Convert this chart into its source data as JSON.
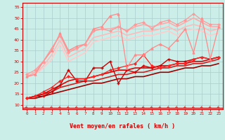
{
  "background_color": "#cceee8",
  "grid_color": "#aacccc",
  "xlabel": "Vent moyen/en rafales ( km/h )",
  "xlim": [
    -0.5,
    23.5
  ],
  "ylim": [
    8,
    57
  ],
  "yticks": [
    10,
    15,
    20,
    25,
    30,
    35,
    40,
    45,
    50,
    55
  ],
  "xticks": [
    0,
    1,
    2,
    3,
    4,
    5,
    6,
    7,
    8,
    9,
    10,
    11,
    12,
    13,
    14,
    15,
    16,
    17,
    18,
    19,
    20,
    21,
    22,
    23
  ],
  "lines": [
    {
      "x": [
        0,
        1,
        2,
        3,
        4,
        5,
        6,
        7,
        8,
        9,
        10,
        11,
        12,
        13,
        14,
        15,
        16,
        17,
        18,
        19,
        20,
        21,
        22,
        23
      ],
      "y": [
        13,
        14,
        14,
        16,
        19,
        26,
        21,
        21,
        27,
        27,
        30,
        20,
        26,
        25,
        28,
        27,
        28,
        31,
        30,
        30,
        31,
        32,
        31,
        32
      ],
      "color": "#cc0000",
      "linewidth": 1.0,
      "marker": "+",
      "markersize": 3.5,
      "markeredgewidth": 1.0,
      "zorder": 6
    },
    {
      "x": [
        0,
        1,
        2,
        3,
        4,
        5,
        6,
        7,
        8,
        9,
        10,
        11,
        12,
        13,
        14,
        15,
        16,
        17,
        18,
        19,
        20,
        21,
        22,
        23
      ],
      "y": [
        13,
        14,
        15,
        17,
        19,
        21,
        22,
        22,
        23,
        24,
        25,
        26,
        26,
        27,
        27,
        27,
        28,
        28,
        29,
        29,
        30,
        30,
        31,
        32
      ],
      "color": "#dd0000",
      "linewidth": 1.2,
      "marker": null,
      "markersize": 0,
      "markeredgewidth": 0,
      "zorder": 4
    },
    {
      "x": [
        0,
        1,
        2,
        3,
        4,
        5,
        6,
        7,
        8,
        9,
        10,
        11,
        12,
        13,
        14,
        15,
        16,
        17,
        18,
        19,
        20,
        21,
        22,
        23
      ],
      "y": [
        13,
        14,
        16,
        18,
        21,
        23,
        22,
        22,
        23,
        24,
        26,
        27,
        28,
        29,
        33,
        28,
        27,
        28,
        29,
        29,
        31,
        32,
        31,
        32
      ],
      "color": "#ff2222",
      "linewidth": 0.9,
      "marker": "D",
      "markersize": 2.0,
      "markeredgewidth": 0.5,
      "zorder": 6
    },
    {
      "x": [
        0,
        1,
        2,
        3,
        4,
        5,
        6,
        7,
        8,
        9,
        10,
        11,
        12,
        13,
        14,
        15,
        16,
        17,
        18,
        19,
        20,
        21,
        22,
        23
      ],
      "y": [
        13,
        13,
        14,
        15,
        16,
        17,
        18,
        19,
        20,
        20,
        21,
        22,
        22,
        23,
        23,
        24,
        25,
        25,
        26,
        27,
        27,
        28,
        28,
        29
      ],
      "color": "#990000",
      "linewidth": 1.2,
      "marker": null,
      "markersize": 0,
      "markeredgewidth": 0,
      "zorder": 3
    },
    {
      "x": [
        0,
        1,
        2,
        3,
        4,
        5,
        6,
        7,
        8,
        9,
        10,
        11,
        12,
        13,
        14,
        15,
        16,
        17,
        18,
        19,
        20,
        21,
        22,
        23
      ],
      "y": [
        13,
        14,
        15,
        16,
        18,
        19,
        20,
        21,
        21,
        22,
        23,
        24,
        24,
        25,
        25,
        26,
        27,
        27,
        28,
        28,
        29,
        29,
        30,
        31
      ],
      "color": "#cc2222",
      "linewidth": 1.2,
      "marker": null,
      "markersize": 0,
      "markeredgewidth": 0,
      "zorder": 3
    },
    {
      "x": [
        0,
        1,
        2,
        3,
        4,
        5,
        6,
        7,
        8,
        9,
        10,
        11,
        12,
        13,
        14,
        15,
        16,
        17,
        18,
        19,
        20,
        21,
        22,
        23
      ],
      "y": [
        23,
        24,
        30,
        35,
        43,
        35,
        37,
        38,
        45,
        46,
        51,
        52,
        27,
        33,
        33,
        36,
        38,
        36,
        40,
        45,
        34,
        50,
        31,
        46
      ],
      "color": "#ff8888",
      "linewidth": 0.9,
      "marker": "^",
      "markersize": 2.5,
      "markeredgewidth": 0.5,
      "zorder": 6
    },
    {
      "x": [
        0,
        1,
        2,
        3,
        4,
        5,
        6,
        7,
        8,
        9,
        10,
        11,
        12,
        13,
        14,
        15,
        16,
        17,
        18,
        19,
        20,
        21,
        22,
        23
      ],
      "y": [
        23,
        25,
        30,
        36,
        42,
        35,
        36,
        38,
        44,
        45,
        45,
        46,
        44,
        46,
        47,
        46,
        47,
        48,
        46,
        48,
        50,
        48,
        46,
        46
      ],
      "color": "#ffaaaa",
      "linewidth": 1.2,
      "marker": null,
      "markersize": 0,
      "markeredgewidth": 0,
      "zorder": 4
    },
    {
      "x": [
        0,
        1,
        2,
        3,
        4,
        5,
        6,
        7,
        8,
        9,
        10,
        11,
        12,
        13,
        14,
        15,
        16,
        17,
        18,
        19,
        20,
        21,
        22,
        23
      ],
      "y": [
        23,
        24,
        28,
        33,
        40,
        32,
        34,
        36,
        41,
        42,
        43,
        44,
        42,
        43,
        44,
        44,
        45,
        46,
        44,
        46,
        47,
        46,
        44,
        45
      ],
      "color": "#ffbbbb",
      "linewidth": 1.2,
      "marker": null,
      "markersize": 0,
      "markeredgewidth": 0,
      "zorder": 3
    },
    {
      "x": [
        0,
        1,
        2,
        3,
        4,
        5,
        6,
        7,
        8,
        9,
        10,
        11,
        12,
        13,
        14,
        15,
        16,
        17,
        18,
        19,
        20,
        21,
        22,
        23
      ],
      "y": [
        23,
        24,
        27,
        31,
        38,
        30,
        32,
        34,
        39,
        40,
        41,
        42,
        40,
        41,
        42,
        42,
        43,
        44,
        42,
        44,
        45,
        44,
        42,
        43
      ],
      "color": "#ffcccc",
      "linewidth": 1.2,
      "marker": null,
      "markersize": 0,
      "markeredgewidth": 0,
      "zorder": 2
    },
    {
      "x": [
        0,
        1,
        2,
        3,
        4,
        5,
        6,
        7,
        8,
        9,
        10,
        11,
        12,
        13,
        14,
        15,
        16,
        17,
        18,
        19,
        20,
        21,
        22,
        23
      ],
      "y": [
        24,
        26,
        30,
        36,
        42,
        34,
        36,
        38,
        44,
        45,
        44,
        46,
        44,
        47,
        48,
        45,
        48,
        49,
        47,
        49,
        52,
        49,
        47,
        47
      ],
      "color": "#ff9999",
      "linewidth": 0.9,
      "marker": "D",
      "markersize": 2.0,
      "markeredgewidth": 0.5,
      "zorder": 6
    }
  ],
  "arrow_color": "#cc2222",
  "tick_color": "#cc0000",
  "label_color": "#cc0000",
  "spine_color": "#cc0000",
  "spine_bottom_color": "#cc0000"
}
